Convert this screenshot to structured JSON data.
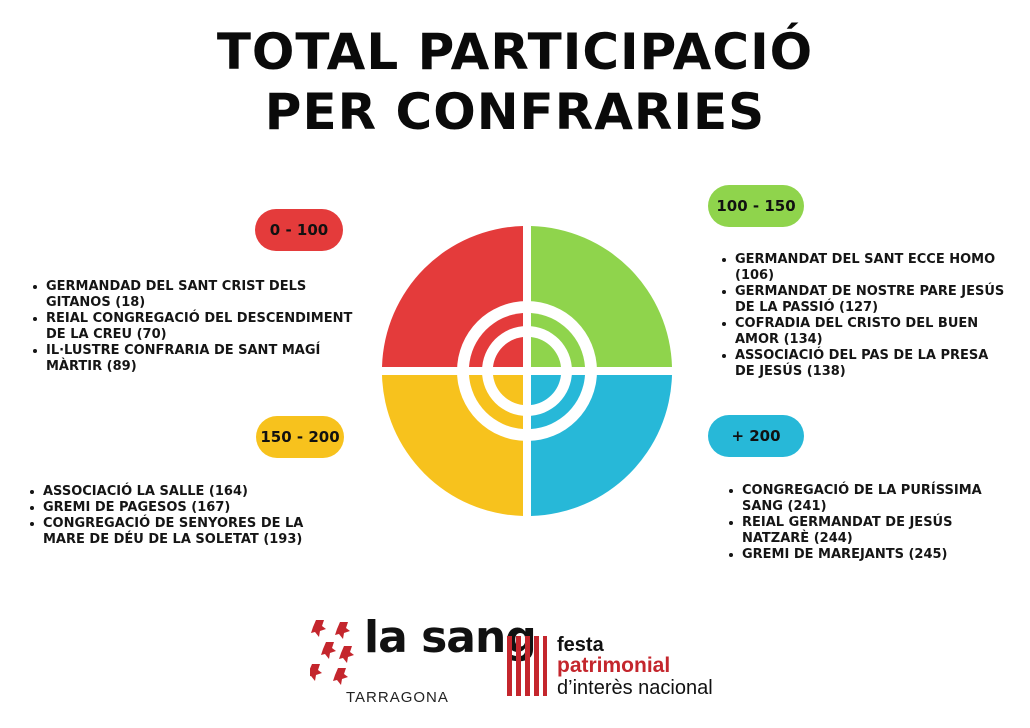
{
  "title": {
    "line1": "TOTAL PARTICIPACIÓ",
    "line2": "PER CONFRARIES"
  },
  "colors": {
    "red": "#e43b3b",
    "green": "#8fd44c",
    "yellow": "#f7c21d",
    "blue": "#27b8d8",
    "brand_red": "#c4262d"
  },
  "groups": [
    {
      "range": "0 - 100",
      "color": "#e43b3b",
      "items": [
        "GERMANDAD DEL SANT CRIST DELS GITANOS (18)",
        "REIAL CONGREGACIÓ DEL DESCENDIMENT DE LA CREU (70)",
        "IL·LUSTRE CONFRARIA DE SANT MAGÍ MÀRTIR (89)"
      ]
    },
    {
      "range": "100 - 150",
      "color": "#8fd44c",
      "items": [
        "GERMANDAT DEL SANT ECCE HOMO (106)",
        "GERMANDAT DE NOSTRE PARE JESÚS DE LA PASSIÓ (127)",
        "COFRADIA DEL CRISTO DEL BUEN AMOR (134)",
        "ASSOCIACIÓ DEL PAS DE LA PRESA DE JESÚS (138)"
      ]
    },
    {
      "range": "150 - 200",
      "color": "#f7c21d",
      "items": [
        "ASSOCIACIÓ LA SALLE (164)",
        "GREMI DE PAGESOS (167)",
        "CONGREGACIÓ DE SENYORES DE LA MARE DE DÉU DE LA SOLETAT (193)"
      ]
    },
    {
      "range": "+ 200",
      "color": "#27b8d8",
      "items": [
        "CONGREGACIÓ DE LA PURÍSSIMA SANG (241)",
        "REIAL GERMANDAT DE JESÚS NATZARÈ (244)",
        "GREMI DE MAREJANTS (245)"
      ]
    }
  ],
  "logos": {
    "lasang": "la sang",
    "tarragona": "TARRAGONA",
    "festa_line1": "festa",
    "festa_line2": "patrimonial",
    "festa_line3": "d’interès nacional"
  }
}
